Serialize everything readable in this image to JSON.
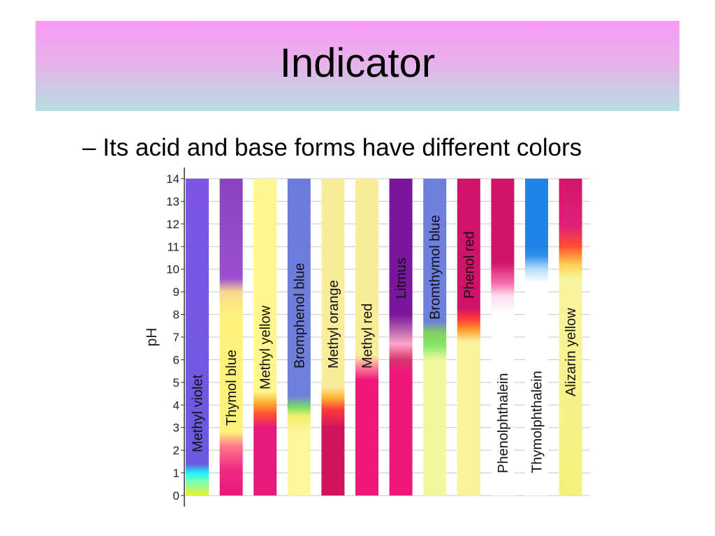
{
  "slide": {
    "title": "Indicator",
    "bullet": "– Its acid and base forms have different colors"
  },
  "chart_data": {
    "type": "pH indicator color range chart",
    "ylabel": "pH",
    "ylim": [
      0,
      14
    ],
    "yticks": [
      "0",
      "1",
      "2",
      "3",
      "4",
      "5",
      "6",
      "7",
      "8",
      "9",
      "10",
      "11",
      "12",
      "13",
      "14"
    ],
    "grid": true,
    "indicators": [
      {
        "name": "Methyl violet",
        "stops": [
          [
            0,
            "#e8f030"
          ],
          [
            0.6,
            "#7dffb0"
          ],
          [
            1.0,
            "#21f0ff"
          ],
          [
            1.4,
            "#6a5ae0"
          ],
          [
            14,
            "#7f55e5"
          ]
        ]
      },
      {
        "name": "Thymol blue",
        "stops": [
          [
            0,
            "#e8197a"
          ],
          [
            1.2,
            "#ef2d85"
          ],
          [
            2.2,
            "#ff7a8a"
          ],
          [
            2.8,
            "#fff27a"
          ],
          [
            8.0,
            "#fff27a"
          ],
          [
            9.0,
            "#f7d890"
          ],
          [
            9.6,
            "#9c4fd0"
          ],
          [
            14,
            "#8a43be"
          ]
        ]
      },
      {
        "name": "Methyl yellow",
        "stops": [
          [
            0,
            "#e61a7a"
          ],
          [
            3.0,
            "#e61a7a"
          ],
          [
            3.6,
            "#ff5030"
          ],
          [
            4.1,
            "#ffb030"
          ],
          [
            4.6,
            "#fff690"
          ],
          [
            14,
            "#fff690"
          ]
        ]
      },
      {
        "name": "Bromphenol blue",
        "stops": [
          [
            0,
            "#fbf79a"
          ],
          [
            2.8,
            "#fbf79a"
          ],
          [
            3.5,
            "#f5ef6a"
          ],
          [
            3.9,
            "#7bdd66"
          ],
          [
            4.4,
            "#6f80dc"
          ],
          [
            14,
            "#6c7bdc"
          ]
        ]
      },
      {
        "name": "Methyl orange",
        "stops": [
          [
            0,
            "#d0125f"
          ],
          [
            3.0,
            "#d0125f"
          ],
          [
            3.8,
            "#ff3a3a"
          ],
          [
            4.3,
            "#ffb030"
          ],
          [
            4.8,
            "#f9ec9a"
          ],
          [
            14,
            "#f9ec9a"
          ]
        ]
      },
      {
        "name": "Methyl red",
        "stops": [
          [
            0,
            "#f0177a"
          ],
          [
            5.1,
            "#f0177a"
          ],
          [
            5.8,
            "#ff9aa0"
          ],
          [
            6.2,
            "#faed9a"
          ],
          [
            14,
            "#faed9a"
          ]
        ]
      },
      {
        "name": "Litmus",
        "stops": [
          [
            0,
            "#f0177a"
          ],
          [
            5.4,
            "#f0177a"
          ],
          [
            6.0,
            "#d6346f"
          ],
          [
            6.7,
            "#ffa8c8"
          ],
          [
            7.2,
            "#c070b0"
          ],
          [
            8.0,
            "#7a169c"
          ],
          [
            14,
            "#7a169c"
          ]
        ]
      },
      {
        "name": "Bromthymol blue",
        "stops": [
          [
            0,
            "#f2f8a0"
          ],
          [
            6.0,
            "#f2f8a0"
          ],
          [
            6.6,
            "#88e86a"
          ],
          [
            7.2,
            "#7fd060"
          ],
          [
            7.7,
            "#6f80dc"
          ],
          [
            14,
            "#6f7fdc"
          ]
        ]
      },
      {
        "name": "Phenol red",
        "stops": [
          [
            0,
            "#fbf29c"
          ],
          [
            6.8,
            "#fbf29c"
          ],
          [
            7.3,
            "#ffa030"
          ],
          [
            7.8,
            "#ff3a3a"
          ],
          [
            8.3,
            "#d0136a"
          ],
          [
            14,
            "#d0136a"
          ]
        ]
      },
      {
        "name": "Phenolphthalein",
        "stops": [
          [
            0,
            "#ffffff"
          ],
          [
            8.0,
            "#ffffff"
          ],
          [
            8.8,
            "#ffe0ee"
          ],
          [
            9.4,
            "#f76aaa"
          ],
          [
            10.3,
            "#d01568"
          ],
          [
            14,
            "#d01568"
          ]
        ]
      },
      {
        "name": "Thymolphthalein",
        "stops": [
          [
            0,
            "#ffffff"
          ],
          [
            9.4,
            "#ffffff"
          ],
          [
            10.0,
            "#b7defa"
          ],
          [
            10.6,
            "#2f8fe6"
          ],
          [
            11.0,
            "#1f84e8"
          ],
          [
            14,
            "#1f84e8"
          ]
        ]
      },
      {
        "name": "Alizarin yellow",
        "stops": [
          [
            0,
            "#f5f27a"
          ],
          [
            9.6,
            "#f8f3a0"
          ],
          [
            10.2,
            "#ffd050"
          ],
          [
            11.0,
            "#ff5030"
          ],
          [
            11.9,
            "#e0207a"
          ],
          [
            14,
            "#d0166a"
          ]
        ]
      }
    ]
  },
  "colors": {
    "axis": "#333333",
    "grid": "#c8c8c8"
  }
}
